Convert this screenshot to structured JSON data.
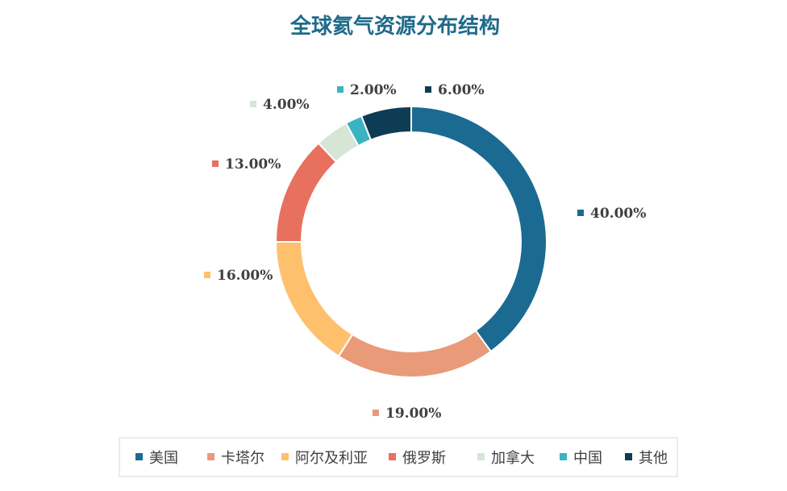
{
  "chart_data": {
    "type": "pie",
    "style": "donut",
    "title": "全球氦气资源分布结构",
    "title_color": "#1f6a8a",
    "categories": [
      "美国",
      "卡塔尔",
      "阿尔及利亚",
      "俄罗斯",
      "加拿大",
      "中国",
      "其他"
    ],
    "values": [
      40,
      19,
      16,
      13,
      4,
      2,
      6
    ],
    "value_labels": [
      "40.00%",
      "19.00%",
      "16.00%",
      "13.00%",
      "4.00%",
      "2.00%",
      "6.00%"
    ],
    "colors": [
      "#1b6a92",
      "#e99a79",
      "#ffc06e",
      "#e8705f",
      "#d6e5d6",
      "#3bb3c3",
      "#0f3c55"
    ],
    "legend_position": "bottom"
  }
}
